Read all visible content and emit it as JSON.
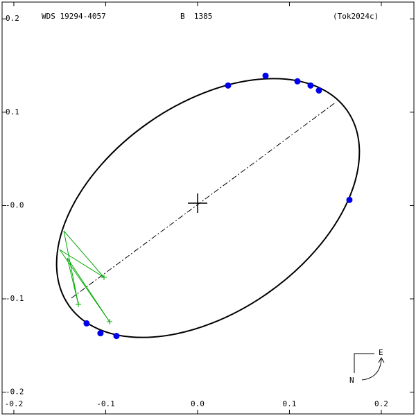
{
  "chart_data": {
    "type": "scatter",
    "title": "WDS 19294-4057",
    "subtitle": "B  1385",
    "reference": "(Tok2024c)",
    "compass": {
      "east": "E",
      "north": "N"
    },
    "x": [
      0.0332,
      0.074,
      0.1087,
      0.123,
      0.1321,
      0.1653,
      -0.1208,
      -0.1057,
      -0.0883
    ],
    "y": [
      0.1286,
      0.1391,
      0.1331,
      0.1286,
      0.1233,
      0.006,
      -0.1263,
      -0.1368,
      -0.1398
    ],
    "color": "#0000ee",
    "xlim": [
      -0.2128,
      0.2355
    ],
    "ylim": [
      -0.2233,
      0.218
    ],
    "xticks": [
      -0.2,
      -0.1,
      {
        "value": 0,
        "label": "0.0"
      },
      0.1,
      0.2
    ],
    "yticks": [
      -0.2,
      -0.1,
      {
        "value": 0,
        "label": "-0.0"
      },
      0.1,
      0.2
    ]
  }
}
